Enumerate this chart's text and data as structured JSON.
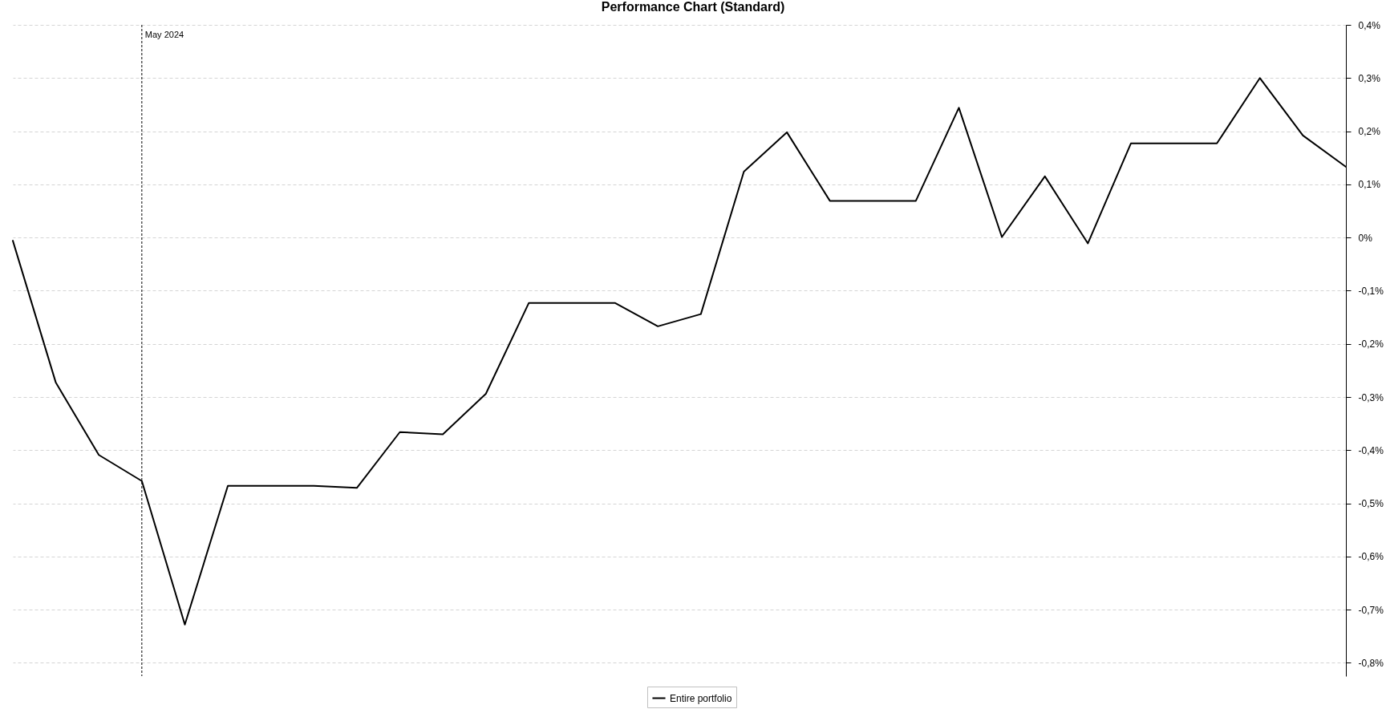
{
  "chart_data": {
    "type": "line",
    "title": "Performance Chart (Standard)",
    "categories": [
      null,
      null,
      null,
      null,
      null,
      null,
      null,
      null,
      null,
      null,
      null,
      null,
      null,
      null,
      null,
      null,
      null,
      null,
      null,
      null,
      null,
      null,
      null,
      null,
      null,
      null,
      null,
      null,
      null,
      null,
      null,
      null
    ],
    "series": [
      {
        "name": "Entire portfolio",
        "color": "#000000",
        "values": [
          -0.006,
          -0.273,
          -0.409,
          -0.458,
          -0.728,
          -0.467,
          -0.467,
          -0.467,
          -0.471,
          -0.366,
          -0.37,
          -0.294,
          -0.123,
          -0.123,
          -0.123,
          -0.167,
          -0.144,
          0.124,
          0.198,
          0.069,
          0.069,
          0.069,
          0.244,
          0.001,
          0.115,
          -0.011,
          0.177,
          0.177,
          0.177,
          0.3,
          0.192,
          0.133
        ]
      }
    ],
    "ylim": [
      -0.825,
      0.4
    ],
    "yticks": [
      {
        "value": 0.4,
        "label": "0,4%"
      },
      {
        "value": 0.3,
        "label": "0,3%"
      },
      {
        "value": 0.2,
        "label": "0,2%"
      },
      {
        "value": 0.1,
        "label": "0,1%"
      },
      {
        "value": 0,
        "label": "0%"
      },
      {
        "value": -0.1,
        "label": "-0,1%"
      },
      {
        "value": -0.2,
        "label": "-0,2%"
      },
      {
        "value": -0.3,
        "label": "-0,3%"
      },
      {
        "value": -0.4,
        "label": "-0,4%"
      },
      {
        "value": -0.5,
        "label": "-0,5%"
      },
      {
        "value": -0.6,
        "label": "-0,6%"
      },
      {
        "value": -0.7,
        "label": "-0,7%"
      },
      {
        "value": -0.8,
        "label": "-0,8%"
      }
    ],
    "annotations": [
      "May 2024"
    ],
    "grid": "y",
    "legend": "bottom",
    "line_style": "solid"
  }
}
